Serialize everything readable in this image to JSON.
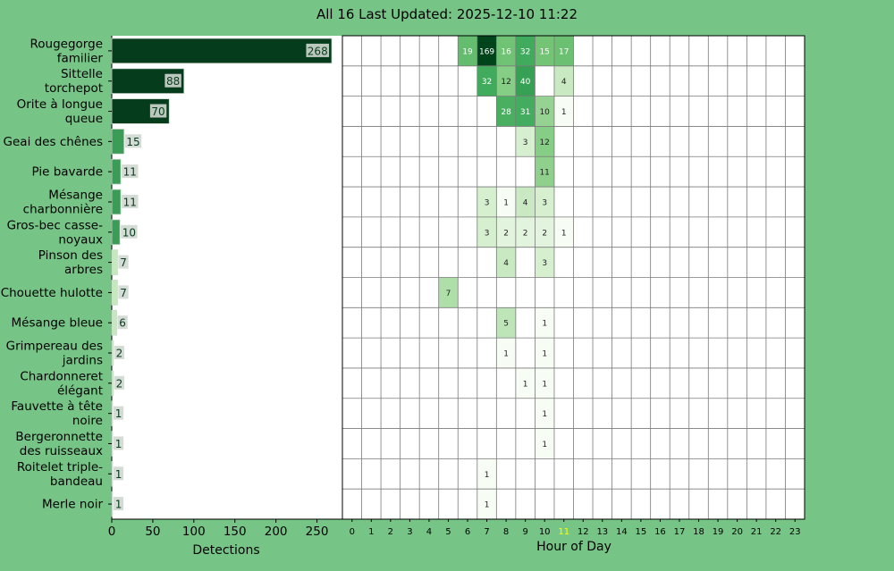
{
  "title": "All 16 Last Updated: 2025-12-10 11:22",
  "colors": {
    "figure_bg": "#77c487",
    "axes_bg": "#ffffff",
    "bar_dark": "#053d1c",
    "bar_mid": "#3a9c56",
    "bar_light": "#c5e8bd",
    "label_box": "#d0d7d0",
    "highlight_tick": "#ffff00",
    "grid": "#7a7a7a"
  },
  "chart_data": [
    {
      "type": "bar",
      "orientation": "horizontal",
      "categories": [
        "Rougegorge\nfamilier",
        "Sittelle\ntorchepot",
        "Orite à longue\nqueue",
        "Geai des chênes",
        "Pie bavarde",
        "Mésange\ncharbonnière",
        "Gros-bec casse-\nnoyaux",
        "Pinson des\narbres",
        "Chouette hulotte",
        "Mésange bleue",
        "Grimpereau des\njardins",
        "Chardonneret\nélégant",
        "Fauvette à tête\nnoire",
        "Bergeronnette\ndes ruisseaux",
        "Roitelet triple-\nbandeau",
        "Merle noir"
      ],
      "values": [
        268,
        88,
        70,
        15,
        11,
        11,
        10,
        7,
        7,
        6,
        2,
        2,
        1,
        1,
        1,
        1
      ],
      "xlabel": "Detections",
      "xticks": [
        0,
        50,
        100,
        150,
        200,
        250
      ],
      "xlim": [
        0,
        281
      ]
    },
    {
      "type": "heatmap",
      "xlabel": "Hour of Day",
      "x": [
        0,
        1,
        2,
        3,
        4,
        5,
        6,
        7,
        8,
        9,
        10,
        11,
        12,
        13,
        14,
        15,
        16,
        17,
        18,
        19,
        20,
        21,
        22,
        23
      ],
      "highlight_hour": 11,
      "cells": [
        [
          0,
          6,
          19
        ],
        [
          0,
          7,
          169
        ],
        [
          0,
          8,
          16
        ],
        [
          0,
          9,
          32
        ],
        [
          0,
          10,
          15
        ],
        [
          0,
          11,
          17
        ],
        [
          1,
          7,
          32
        ],
        [
          1,
          8,
          12
        ],
        [
          1,
          9,
          40
        ],
        [
          1,
          11,
          4
        ],
        [
          2,
          8,
          28
        ],
        [
          2,
          9,
          31
        ],
        [
          2,
          10,
          10
        ],
        [
          2,
          11,
          1
        ],
        [
          3,
          9,
          3
        ],
        [
          3,
          10,
          12
        ],
        [
          4,
          10,
          11
        ],
        [
          5,
          7,
          3
        ],
        [
          5,
          8,
          1
        ],
        [
          5,
          9,
          4
        ],
        [
          5,
          10,
          3
        ],
        [
          6,
          7,
          3
        ],
        [
          6,
          8,
          2
        ],
        [
          6,
          9,
          2
        ],
        [
          6,
          10,
          2
        ],
        [
          6,
          11,
          1
        ],
        [
          7,
          8,
          4
        ],
        [
          7,
          10,
          3
        ],
        [
          8,
          5,
          7
        ],
        [
          9,
          8,
          5
        ],
        [
          9,
          10,
          1
        ],
        [
          10,
          8,
          1
        ],
        [
          10,
          10,
          1
        ],
        [
          11,
          9,
          1
        ],
        [
          11,
          10,
          1
        ],
        [
          12,
          10,
          1
        ],
        [
          13,
          10,
          1
        ],
        [
          14,
          7,
          1
        ],
        [
          15,
          7,
          1
        ]
      ]
    }
  ]
}
